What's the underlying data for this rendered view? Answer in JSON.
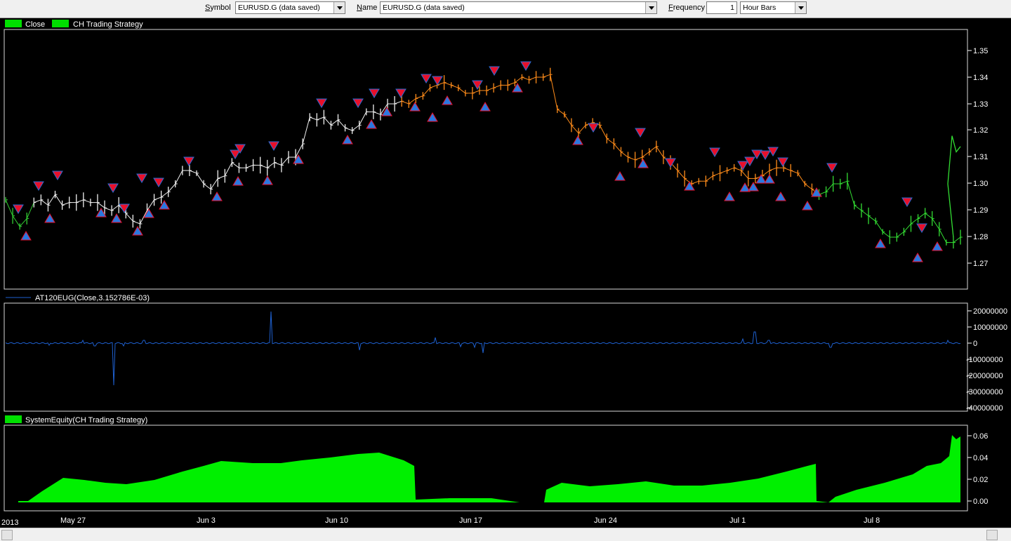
{
  "toolbar": {
    "symbol_label_u": "S",
    "symbol_label_rest": "ymbol",
    "symbol_value": "EURUSD.G (data saved)",
    "name_label_u": "N",
    "name_label_rest": "ame",
    "name_value": "EURUSD.G (data saved)",
    "frequency_label_u": "F",
    "frequency_label_rest": "requency",
    "frequency_value": "1",
    "bar_type": "Hour Bars"
  },
  "panels": {
    "price": {
      "legend": [
        "Close",
        "CH Trading Strategy"
      ],
      "legend_color": "#00e000"
    },
    "indicator": {
      "legend": "AT120EUG(Close,3.152786E-03)",
      "line_color": "#1e60d0"
    },
    "equity": {
      "legend": "SystemEquity(CH Trading Strategy)",
      "fill_color": "#00f000"
    }
  },
  "x_axis": {
    "year_label": "2013",
    "labels": [
      "May 27",
      "Jun 3",
      "Jun 10",
      "Jun 17",
      "Jun 24",
      "Jul 1",
      "Jul 8"
    ]
  },
  "chart_data": [
    {
      "type": "line",
      "title": "Close",
      "y_ticks": [
        "1.35",
        "1.34",
        "1.33",
        "1.32",
        "1.31",
        "1.30",
        "1.29",
        "1.28",
        "1.27"
      ],
      "ylim": [
        1.262,
        1.358
      ],
      "x": [
        0,
        10,
        20,
        30,
        40,
        50,
        60,
        70,
        80,
        90,
        100,
        110,
        120,
        130,
        140,
        150,
        160,
        170,
        180,
        190,
        200,
        210,
        220,
        230,
        240,
        250,
        260,
        270,
        280,
        290,
        300,
        310,
        320,
        330,
        340,
        350,
        360,
        370,
        380,
        390,
        400,
        410,
        420,
        430,
        440,
        450,
        460,
        470,
        480,
        490,
        500,
        510,
        520,
        530,
        540,
        550,
        560,
        570,
        580,
        590,
        600,
        610,
        620,
        630,
        640,
        650,
        660,
        670,
        680,
        690,
        700,
        710,
        720,
        730,
        740,
        750,
        760,
        770,
        780,
        790,
        800,
        810,
        820,
        830,
        840,
        850,
        860,
        870,
        880,
        890,
        900,
        910,
        920,
        930,
        940,
        950,
        960,
        970,
        980,
        990,
        1000,
        1010,
        1020,
        1030,
        1040,
        1050,
        1060,
        1070,
        1080,
        1090,
        1100,
        1110,
        1120,
        1130,
        1140,
        1150,
        1160,
        1170,
        1180,
        1190,
        1200,
        1210,
        1220,
        1230,
        1240,
        1250,
        1260,
        1270,
        1280,
        1290,
        1300,
        1310,
        1320,
        1330,
        1340,
        1350
      ],
      "values": [
        1.294,
        1.288,
        1.284,
        1.287,
        1.293,
        1.294,
        1.292,
        1.296,
        1.292,
        1.293,
        1.293,
        1.294,
        1.293,
        1.293,
        1.291,
        1.29,
        1.292,
        1.289,
        1.286,
        1.285,
        1.29,
        1.294,
        1.295,
        1.297,
        1.3,
        1.305,
        1.305,
        1.304,
        1.3,
        1.298,
        1.302,
        1.303,
        1.308,
        1.306,
        1.306,
        1.307,
        1.307,
        1.306,
        1.308,
        1.307,
        1.31,
        1.31,
        1.315,
        1.325,
        1.324,
        1.325,
        1.322,
        1.324,
        1.321,
        1.32,
        1.322,
        1.327,
        1.327,
        1.326,
        1.33,
        1.33,
        1.331,
        1.33,
        1.332,
        1.333,
        1.336,
        1.337,
        1.338,
        1.337,
        1.336,
        1.334,
        1.334,
        1.335,
        1.335,
        1.336,
        1.337,
        1.337,
        1.338,
        1.34,
        1.339,
        1.34,
        1.34,
        1.341,
        1.328,
        1.326,
        1.322,
        1.319,
        1.322,
        1.323,
        1.322,
        1.317,
        1.315,
        1.312,
        1.31,
        1.309,
        1.31,
        1.312,
        1.314,
        1.31,
        1.308,
        1.305,
        1.302,
        1.3,
        1.301,
        1.301,
        1.303,
        1.304,
        1.305,
        1.306,
        1.305,
        1.302,
        1.302,
        1.303,
        1.305,
        1.306,
        1.306,
        1.305,
        1.304,
        1.3,
        1.298,
        1.296,
        1.297,
        1.3,
        1.3,
        1.301,
        1.292,
        1.29,
        1.288,
        1.286,
        1.282,
        1.28,
        1.28,
        1.282,
        1.285,
        1.287,
        1.289,
        1.287,
        1.283,
        1.278,
        1.278,
        1.28
      ]
    },
    {
      "type": "line",
      "title": "AT120EUG(Close,3.152786E-03)",
      "y_ticks": [
        "20000000",
        "10000000",
        "0",
        "-10000000",
        "-20000000",
        "-30000000",
        "-40000000"
      ]
    },
    {
      "type": "area",
      "title": "SystemEquity(CH Trading Strategy)",
      "y_ticks": [
        "0.06",
        "0.04",
        "0.02",
        "0.00"
      ],
      "ylim": [
        -0.005,
        0.068
      ]
    }
  ]
}
